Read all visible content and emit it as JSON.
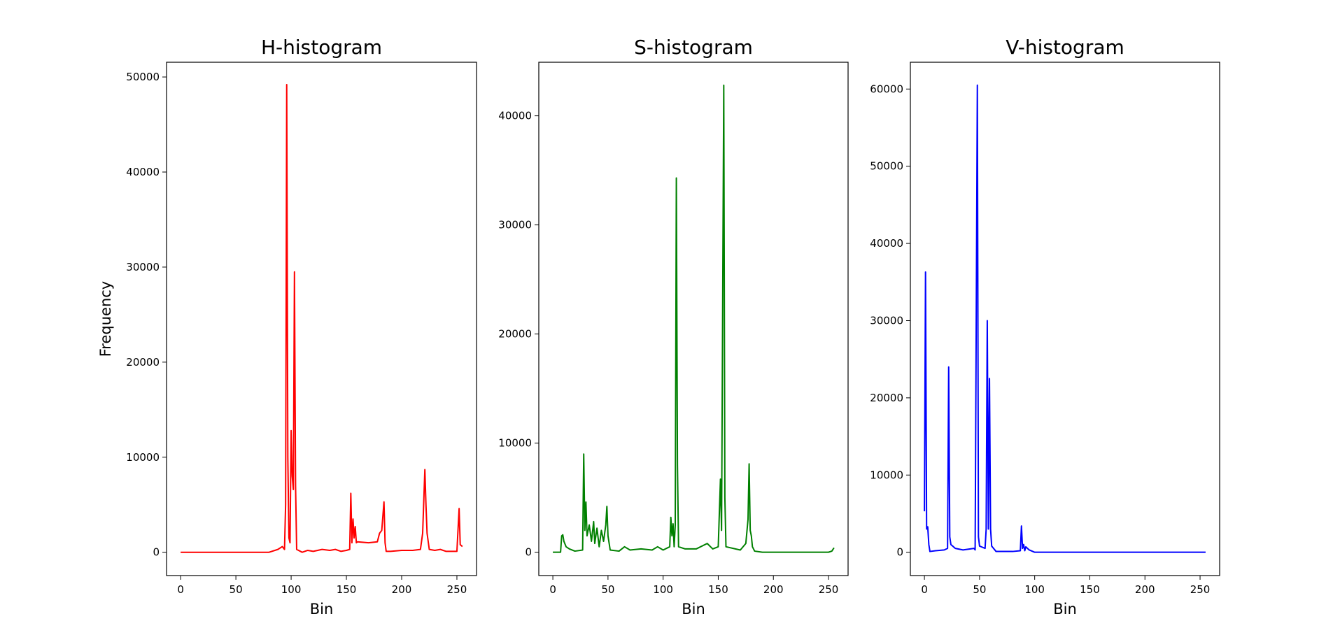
{
  "chart_data": [
    {
      "type": "line",
      "title": "H-histogram",
      "xlabel": "Bin",
      "ylabel": "Frequency",
      "color": "#ff0000",
      "x": [
        0,
        80,
        88,
        92,
        94,
        95,
        96,
        97,
        98,
        99,
        100,
        101,
        102,
        103,
        104,
        105,
        110,
        115,
        120,
        128,
        135,
        140,
        145,
        150,
        153,
        154,
        155,
        156,
        157,
        158,
        159,
        160,
        170,
        178,
        180,
        182,
        184,
        185,
        186,
        190,
        200,
        210,
        217,
        219,
        221,
        222,
        223,
        225,
        230,
        235,
        240,
        250,
        252,
        253,
        255
      ],
      "values": [
        0,
        0,
        300,
        600,
        300,
        5000,
        49200,
        10000,
        1500,
        1000,
        12800,
        8000,
        6600,
        29500,
        7000,
        300,
        0,
        200,
        100,
        300,
        200,
        300,
        100,
        200,
        300,
        6200,
        1000,
        3500,
        1500,
        2700,
        1000,
        1100,
        1000,
        1100,
        2000,
        2300,
        5300,
        1000,
        100,
        100,
        200,
        200,
        300,
        2000,
        8700,
        5000,
        2000,
        300,
        200,
        300,
        100,
        100,
        4600,
        800,
        600
      ],
      "xlim": [
        -12.75,
        267.75
      ],
      "xticks": [
        0,
        50,
        100,
        150,
        200,
        250
      ],
      "ylim": [
        -2450,
        51550
      ],
      "yticks": [
        0,
        10000,
        20000,
        30000,
        40000,
        50000
      ]
    },
    {
      "type": "line",
      "title": "S-histogram",
      "xlabel": "Bin",
      "color": "#008000",
      "x": [
        0,
        7,
        8,
        9,
        10,
        12,
        15,
        20,
        27,
        28,
        29,
        30,
        31,
        33,
        35,
        37,
        38,
        40,
        42,
        44,
        46,
        48,
        49,
        50,
        52,
        60,
        65,
        70,
        80,
        90,
        95,
        100,
        106,
        107,
        108,
        109,
        110,
        111,
        112,
        113,
        114,
        120,
        130,
        140,
        145,
        150,
        152,
        153,
        155,
        156,
        157,
        170,
        175,
        177,
        178,
        179,
        180,
        181,
        183,
        190,
        250,
        253,
        255
      ],
      "values": [
        0,
        0,
        1500,
        1600,
        1000,
        500,
        300,
        100,
        200,
        9000,
        2000,
        4600,
        1500,
        2500,
        1000,
        2800,
        800,
        2200,
        500,
        2000,
        1000,
        2500,
        4200,
        1500,
        200,
        100,
        500,
        200,
        300,
        200,
        500,
        200,
        500,
        3200,
        1500,
        2600,
        500,
        2500,
        34300,
        8000,
        500,
        300,
        300,
        800,
        300,
        500,
        6700,
        2000,
        42800,
        5000,
        500,
        200,
        800,
        3000,
        8100,
        2000,
        1500,
        500,
        100,
        0,
        0,
        100,
        400
      ],
      "xlim": [
        -12.75,
        267.75
      ],
      "xticks": [
        0,
        50,
        100,
        150,
        200,
        250
      ],
      "ylim": [
        -2140,
        44910
      ],
      "yticks": [
        0,
        10000,
        20000,
        30000,
        40000
      ]
    },
    {
      "type": "line",
      "title": "V-histogram",
      "xlabel": "Bin",
      "color": "#0000ff",
      "x": [
        0,
        1,
        2,
        3,
        4,
        5,
        10,
        18,
        21,
        22,
        23,
        24,
        28,
        35,
        45,
        46,
        48,
        49,
        50,
        55,
        56,
        57,
        58,
        59,
        60,
        61,
        65,
        80,
        87,
        88,
        89,
        90,
        91,
        92,
        95,
        100,
        255
      ],
      "values": [
        5300,
        36300,
        3000,
        3300,
        1000,
        100,
        200,
        300,
        500,
        24000,
        2000,
        1000,
        500,
        300,
        500,
        300,
        60500,
        2000,
        800,
        500,
        3000,
        30000,
        3000,
        22500,
        3000,
        800,
        100,
        100,
        200,
        3400,
        500,
        1000,
        200,
        700,
        300,
        0,
        0
      ],
      "xlim": [
        -12.75,
        267.75
      ],
      "xticks": [
        0,
        50,
        100,
        150,
        200,
        250
      ],
      "ylim": [
        -3020,
        63470
      ],
      "yticks": [
        0,
        10000,
        20000,
        30000,
        40000,
        50000,
        60000
      ]
    }
  ]
}
